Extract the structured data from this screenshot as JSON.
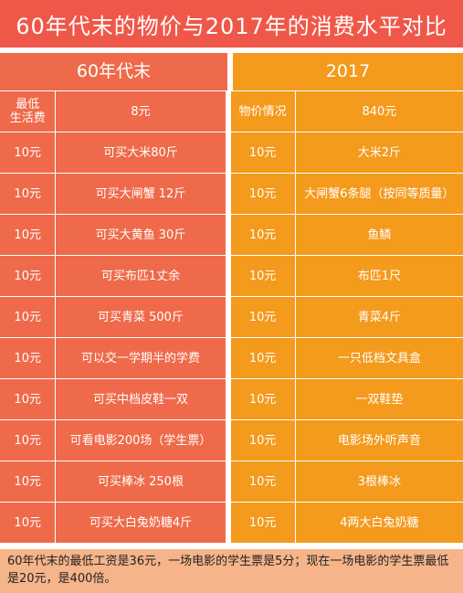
{
  "title": "60年代末的物价与2017年的消费水平对比",
  "headers": {
    "left": "60年代末",
    "right": "2017"
  },
  "rows": [
    {
      "a": "最低\n生活费",
      "b": "8元",
      "c": "物价情况",
      "d": "840元"
    },
    {
      "a": "10元",
      "b": "可买大米80斤",
      "c": "10元",
      "d": "大米2斤"
    },
    {
      "a": "10元",
      "b": "可买大闸蟹 12斤",
      "c": "10元",
      "d": "大闸蟹6条腿（按同等质量）"
    },
    {
      "a": "10元",
      "b": "可买大黄鱼 30斤",
      "c": "10元",
      "d": "鱼鳞"
    },
    {
      "a": "10元",
      "b": "可买布匹1丈余",
      "c": "10元",
      "d": "布匹1尺"
    },
    {
      "a": "10元",
      "b": "可买青菜 500斤",
      "c": "10元",
      "d": "青菜4斤"
    },
    {
      "a": "10元",
      "b": "可以交一学期半的学费",
      "c": "10元",
      "d": "一只低档文具盒"
    },
    {
      "a": "10元",
      "b": "可买中档皮鞋一双",
      "c": "10元",
      "d": "一双鞋垫"
    },
    {
      "a": "10元",
      "b": "可看电影200场（学生票）",
      "c": "10元",
      "d": "电影场外听声音"
    },
    {
      "a": "10元",
      "b": "可买棒冰 250根",
      "c": "10元",
      "d": "3根棒冰"
    },
    {
      "a": "10元",
      "b": "可买大白兔奶糖4斤",
      "c": "10元",
      "d": "4两大白兔奶糖"
    }
  ],
  "footer": "60年代末的最低工资是36元，一场电影的学生票是5分；现在一场电影的学生票最低是20元，是400倍。",
  "colors": {
    "title": "#ef5849",
    "left": "#ef6a4a",
    "right": "#f49a1c",
    "footer": "#f6b48a"
  }
}
